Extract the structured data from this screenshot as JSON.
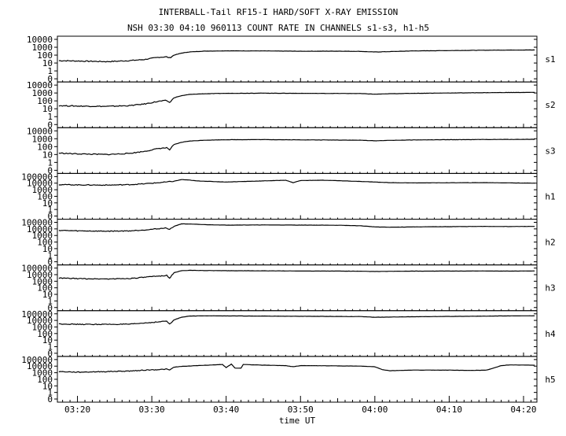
{
  "title": "INTERBALL-Tail RF15-I HARD/SOFT X-RAY EMISSION",
  "subtitle": "NSH 03:30 04:10 960113  COUNT RATE IN CHANNELS s1-s3, h1-h5",
  "chart_data": {
    "type": "line",
    "xlabel": "time UT",
    "x_range_minutes": [
      17.3,
      81.8
    ],
    "x_ticks": [
      {
        "minute": 20,
        "label": "03:20"
      },
      {
        "minute": 30,
        "label": "03:30"
      },
      {
        "minute": 40,
        "label": "03:40"
      },
      {
        "minute": 50,
        "label": "03:50"
      },
      {
        "minute": 60,
        "label": "04:00"
      },
      {
        "minute": 70,
        "label": "04:10"
      },
      {
        "minute": 80,
        "label": "04:20"
      }
    ],
    "y_scale": "log",
    "panels": [
      {
        "name": "s1",
        "yticks": [
          "10000",
          "1000",
          "100",
          "10",
          "1",
          "0"
        ],
        "series": [
          [
            17.5,
            20
          ],
          [
            20,
            18
          ],
          [
            24,
            15
          ],
          [
            27,
            20
          ],
          [
            29,
            28
          ],
          [
            31,
            55
          ],
          [
            32,
            60
          ],
          [
            32.4,
            45
          ],
          [
            33,
            100
          ],
          [
            34,
            180
          ],
          [
            35,
            250
          ],
          [
            37,
            320
          ],
          [
            40,
            350
          ],
          [
            45,
            340
          ],
          [
            50,
            310
          ],
          [
            55,
            320
          ],
          [
            58,
            300
          ],
          [
            60,
            250
          ],
          [
            62,
            280
          ],
          [
            65,
            340
          ],
          [
            70,
            380
          ],
          [
            75,
            420
          ],
          [
            78,
            440
          ],
          [
            81.5,
            450
          ]
        ]
      },
      {
        "name": "s2",
        "yticks": [
          "10000",
          "1000",
          "100",
          "10",
          "1",
          "0"
        ],
        "series": [
          [
            17.5,
            25
          ],
          [
            20,
            22
          ],
          [
            24,
            20
          ],
          [
            27,
            25
          ],
          [
            29,
            40
          ],
          [
            31,
            90
          ],
          [
            32,
            110
          ],
          [
            32.4,
            60
          ],
          [
            33,
            250
          ],
          [
            34,
            450
          ],
          [
            35,
            650
          ],
          [
            37,
            800
          ],
          [
            40,
            900
          ],
          [
            45,
            950
          ],
          [
            50,
            900
          ],
          [
            55,
            870
          ],
          [
            58,
            850
          ],
          [
            60,
            700
          ],
          [
            62,
            800
          ],
          [
            65,
            900
          ],
          [
            70,
            1000
          ],
          [
            75,
            1100
          ],
          [
            78,
            1150
          ],
          [
            81.5,
            1200
          ]
        ]
      },
      {
        "name": "s3",
        "yticks": [
          "10000",
          "1000",
          "100",
          "10",
          "1",
          "0"
        ],
        "series": [
          [
            17.5,
            15
          ],
          [
            20,
            12
          ],
          [
            24,
            10
          ],
          [
            27,
            14
          ],
          [
            29,
            25
          ],
          [
            31,
            60
          ],
          [
            32,
            70
          ],
          [
            32.4,
            40
          ],
          [
            33,
            180
          ],
          [
            34,
            350
          ],
          [
            35,
            500
          ],
          [
            37,
            650
          ],
          [
            40,
            750
          ],
          [
            45,
            780
          ],
          [
            50,
            720
          ],
          [
            55,
            680
          ],
          [
            58,
            650
          ],
          [
            60,
            550
          ],
          [
            62,
            620
          ],
          [
            65,
            700
          ],
          [
            70,
            750
          ],
          [
            75,
            800
          ],
          [
            78,
            820
          ],
          [
            81.5,
            850
          ]
        ]
      },
      {
        "name": "h1",
        "yticks": [
          "100000",
          "10000",
          "1000",
          "100",
          "10",
          "1",
          "0"
        ],
        "series": [
          [
            17.5,
            6000
          ],
          [
            20,
            5500
          ],
          [
            24,
            5000
          ],
          [
            27,
            6000
          ],
          [
            29,
            8000
          ],
          [
            31,
            12000
          ],
          [
            32,
            15000
          ],
          [
            33,
            20000
          ],
          [
            34,
            35000
          ],
          [
            35,
            30000
          ],
          [
            36,
            22000
          ],
          [
            38,
            18000
          ],
          [
            40,
            15000
          ],
          [
            45,
            22000
          ],
          [
            48,
            28000
          ],
          [
            49,
            12000
          ],
          [
            50,
            25000
          ],
          [
            53,
            28000
          ],
          [
            55,
            24000
          ],
          [
            58,
            18000
          ],
          [
            60,
            15000
          ],
          [
            62,
            12000
          ],
          [
            65,
            11000
          ],
          [
            70,
            11500
          ],
          [
            75,
            12000
          ],
          [
            78,
            11000
          ],
          [
            81.5,
            10000
          ]
        ]
      },
      {
        "name": "h2",
        "yticks": [
          "100000",
          "10000",
          "1000",
          "100",
          "10",
          "1",
          "0"
        ],
        "series": [
          [
            17.5,
            6000
          ],
          [
            20,
            5000
          ],
          [
            24,
            4500
          ],
          [
            27,
            5000
          ],
          [
            29,
            7000
          ],
          [
            31,
            11000
          ],
          [
            32,
            14000
          ],
          [
            32.4,
            8000
          ],
          [
            33,
            25000
          ],
          [
            34,
            60000
          ],
          [
            35,
            55000
          ],
          [
            37,
            45000
          ],
          [
            40,
            38000
          ],
          [
            45,
            40000
          ],
          [
            50,
            38000
          ],
          [
            55,
            36000
          ],
          [
            58,
            30000
          ],
          [
            60,
            20000
          ],
          [
            62,
            18000
          ],
          [
            65,
            20000
          ],
          [
            70,
            22000
          ],
          [
            75,
            24000
          ],
          [
            78,
            23000
          ],
          [
            81.5,
            24000
          ]
        ]
      },
      {
        "name": "h3",
        "yticks": [
          "100000",
          "10000",
          "1000",
          "100",
          "10",
          "1",
          "0"
        ],
        "series": [
          [
            17.5,
            3000
          ],
          [
            20,
            2500
          ],
          [
            24,
            2200
          ],
          [
            27,
            2600
          ],
          [
            29,
            4000
          ],
          [
            31,
            6000
          ],
          [
            32,
            8000
          ],
          [
            32.4,
            3000
          ],
          [
            33,
            20000
          ],
          [
            34,
            40000
          ],
          [
            35,
            45000
          ],
          [
            37,
            42000
          ],
          [
            40,
            40000
          ],
          [
            45,
            38000
          ],
          [
            50,
            36000
          ],
          [
            55,
            35000
          ],
          [
            58,
            33000
          ],
          [
            60,
            30000
          ],
          [
            62,
            32000
          ],
          [
            65,
            34000
          ],
          [
            70,
            35000
          ],
          [
            75,
            36000
          ],
          [
            78,
            35000
          ],
          [
            81.5,
            36000
          ]
        ]
      },
      {
        "name": "h4",
        "yticks": [
          "100000",
          "10000",
          "1000",
          "100",
          "10",
          "1",
          "0"
        ],
        "series": [
          [
            17.5,
            3000
          ],
          [
            20,
            2500
          ],
          [
            24,
            2500
          ],
          [
            27,
            2600
          ],
          [
            29,
            4000
          ],
          [
            31,
            6000
          ],
          [
            32,
            8000
          ],
          [
            32.4,
            2500
          ],
          [
            33,
            12000
          ],
          [
            34,
            30000
          ],
          [
            35,
            45000
          ],
          [
            37,
            50000
          ],
          [
            40,
            48000
          ],
          [
            45,
            45000
          ],
          [
            50,
            42000
          ],
          [
            55,
            40000
          ],
          [
            58,
            38000
          ],
          [
            60,
            30000
          ],
          [
            62,
            32000
          ],
          [
            65,
            36000
          ],
          [
            70,
            40000
          ],
          [
            75,
            45000
          ],
          [
            78,
            48000
          ],
          [
            81.5,
            50000
          ]
        ]
      },
      {
        "name": "h5",
        "yticks": [
          "100000",
          "10000",
          "1000",
          "100",
          "10",
          "1",
          "0"
        ],
        "series": [
          [
            17.5,
            1500
          ],
          [
            20,
            1200
          ],
          [
            24,
            1500
          ],
          [
            27,
            1800
          ],
          [
            29,
            2500
          ],
          [
            31,
            3000
          ],
          [
            32,
            3500
          ],
          [
            32.4,
            2500
          ],
          [
            33,
            7000
          ],
          [
            34,
            9000
          ],
          [
            36,
            12000
          ],
          [
            38,
            15000
          ],
          [
            39.5,
            18000
          ],
          [
            40,
            6000
          ],
          [
            40.7,
            20000
          ],
          [
            41.2,
            5000
          ],
          [
            42,
            5000
          ],
          [
            42.3,
            18000
          ],
          [
            45,
            14000
          ],
          [
            48,
            12000
          ],
          [
            49,
            8000
          ],
          [
            50,
            12000
          ],
          [
            55,
            11000
          ],
          [
            58,
            10000
          ],
          [
            60,
            8000
          ],
          [
            61,
            3000
          ],
          [
            62,
            2000
          ],
          [
            65,
            2500
          ],
          [
            70,
            2500
          ],
          [
            73,
            2200
          ],
          [
            75,
            2500
          ],
          [
            76,
            5000
          ],
          [
            77,
            12000
          ],
          [
            78,
            15000
          ],
          [
            81.5,
            14000
          ]
        ]
      }
    ]
  }
}
